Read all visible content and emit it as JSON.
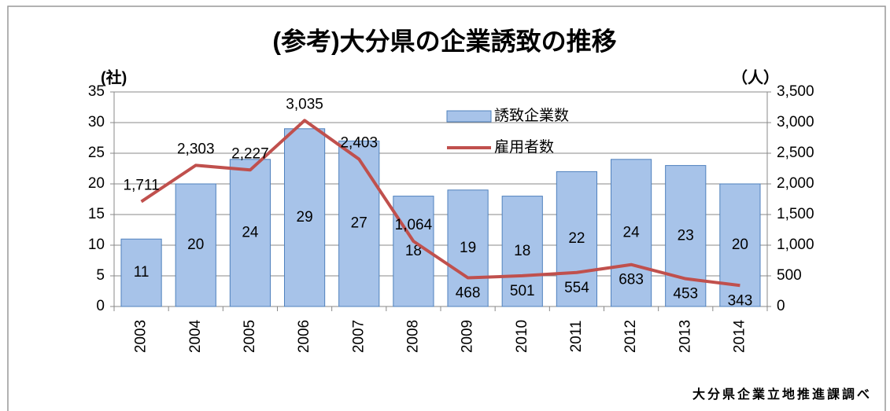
{
  "chart_data": {
    "type": "bar-line",
    "title": "(参考)大分県の企業誘致の推移",
    "y_label": "(社)",
    "y2_label": "（人）",
    "source": "大分県企業立地推進課調べ",
    "categories": [
      "2003",
      "2004",
      "2005",
      "2006",
      "2007",
      "2008",
      "2009",
      "2010",
      "2011",
      "2012",
      "2013",
      "2014"
    ],
    "series": [
      {
        "name": "誘致企業数",
        "type": "bar",
        "color": "#a7c3e9",
        "values": [
          11,
          20,
          24,
          29,
          27,
          18,
          19,
          18,
          22,
          24,
          23,
          20
        ]
      },
      {
        "name": "雇用者数",
        "type": "line",
        "color": "#c0504d",
        "axis": "y2",
        "values": [
          1711,
          2303,
          2227,
          3035,
          2403,
          1064,
          468,
          501,
          554,
          683,
          453,
          343
        ],
        "value_labels": [
          "1,711",
          "2,303",
          "2,227",
          "3,035",
          "2,403",
          "1,064",
          "468",
          "501",
          "554",
          "683",
          "453",
          "343"
        ]
      }
    ],
    "ylim": [
      0,
      35
    ],
    "yticks": [
      0,
      5,
      10,
      15,
      20,
      25,
      30,
      35
    ],
    "y2lim": [
      0,
      3500
    ],
    "y2ticks": [
      0,
      500,
      {
        "value": 1000,
        "label": "1,000"
      },
      {
        "value": 1500,
        "label": "1,500"
      },
      {
        "value": 2000,
        "label": "2,000"
      },
      {
        "value": 2500,
        "label": "2,500"
      },
      {
        "value": 3000,
        "label": "3,000"
      },
      {
        "value": 3500,
        "label": "3,500"
      }
    ],
    "grid": true,
    "legend": "top-center"
  }
}
